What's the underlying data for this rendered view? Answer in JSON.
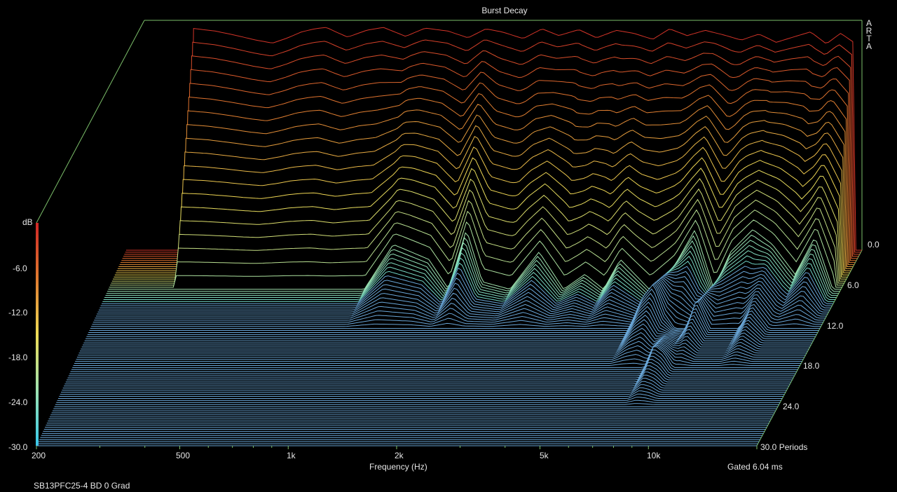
{
  "chart_data": {
    "type": "waterfall",
    "title": "Burst Decay",
    "brand": "ARTA",
    "xlabel": "Frequency (Hz)",
    "x_scale": "log",
    "xlim": [
      200,
      20000
    ],
    "x_tick_labels": [
      {
        "value": 200,
        "label": "200"
      },
      {
        "value": 500,
        "label": "500"
      },
      {
        "value": 1000,
        "label": "1k"
      },
      {
        "value": 2000,
        "label": "2k"
      },
      {
        "value": 5000,
        "label": "5k"
      },
      {
        "value": 10000,
        "label": "10k"
      }
    ],
    "z_label": "dB",
    "zlim": [
      -30,
      0
    ],
    "z_tick_labels": [
      "-6.0",
      "-12.0",
      "-18.0",
      "-24.0",
      "-30.0"
    ],
    "depth_unit": "Periods",
    "depth_range": [
      0,
      30
    ],
    "depth_tick_labels": [
      "0.0",
      "6.0",
      "12.0",
      "18.0",
      "24.0",
      "30.0 Periods"
    ],
    "gating_note": "Gated 6.04 ms",
    "footer": "SB13PFC25-4 BD 0 Grad",
    "colorbar": [
      "#cf2626",
      "#e07a2f",
      "#eedb55",
      "#9fe3b0",
      "#36c9ea"
    ],
    "series_at_periods": [
      {
        "periods": 0,
        "freqs": [
          300,
          350,
          400,
          450,
          500,
          550,
          600,
          650,
          700,
          750,
          800,
          900,
          1000,
          1150,
          1300,
          1500,
          1700,
          1900,
          2100,
          2400,
          2700,
          3000,
          3400,
          3800,
          4300,
          4800,
          5400,
          6000,
          6700,
          7500,
          8400,
          9400,
          10500,
          11700,
          13000,
          14500,
          16000,
          17500,
          19000
        ],
        "db": [
          -0.3,
          -0.7,
          -1.3,
          -1.9,
          -2.3,
          -1.6,
          -0.8,
          -0.4,
          -0.2,
          -0.9,
          -1.5,
          -0.6,
          -0.2,
          -1.4,
          -0.3,
          -0.7,
          -1.6,
          -0.4,
          -0.8,
          -1.7,
          -0.4,
          -1.3,
          -0.5,
          -1.6,
          -0.6,
          -1.0,
          -1.8,
          -0.4,
          -1.3,
          -0.6,
          -1.2,
          -1.9,
          -1.1,
          -2.2,
          -1.5,
          -0.8,
          -2.4,
          -1.0,
          -2.2
        ]
      },
      {
        "periods": 6,
        "freqs": [
          300,
          400,
          500,
          600,
          700,
          800,
          1000,
          1200,
          1500,
          1700,
          1900,
          2100,
          2500,
          3000,
          3500,
          4000,
          4500,
          5000,
          6000,
          7000,
          8000,
          9000,
          10000,
          11500,
          13000,
          15000,
          17000,
          19000
        ],
        "db": [
          -30,
          -30,
          -30,
          -30,
          -30,
          -30,
          -30,
          -24,
          -26,
          -30,
          -22,
          -29,
          -30,
          -25,
          -30,
          -28,
          -30,
          -26,
          -30,
          -27,
          -22,
          -30,
          -25,
          -22,
          -24,
          -28,
          -23,
          -30
        ]
      },
      {
        "periods": 12,
        "freqs": [
          6000,
          6500,
          7000,
          7500,
          8000,
          8600,
          9200,
          10000,
          11000,
          12000,
          13000,
          14500,
          16000
        ],
        "db": [
          -30,
          -26,
          -24,
          -28,
          -30,
          -30,
          -26,
          -30,
          -30,
          -30,
          -27,
          -30,
          -30
        ]
      },
      {
        "periods": 18,
        "freqs": [
          7000,
          7500,
          8000,
          8500,
          9000,
          10000,
          12000,
          14000,
          16000
        ],
        "db": [
          -30,
          -30,
          -27,
          -28,
          -30,
          -30,
          -30,
          -30,
          -30
        ]
      },
      {
        "periods": 24,
        "freqs": [
          200,
          20000
        ],
        "db": [
          -30,
          -30
        ]
      },
      {
        "periods": 30,
        "freqs": [
          200,
          20000
        ],
        "db": [
          -30,
          -30
        ]
      }
    ]
  }
}
